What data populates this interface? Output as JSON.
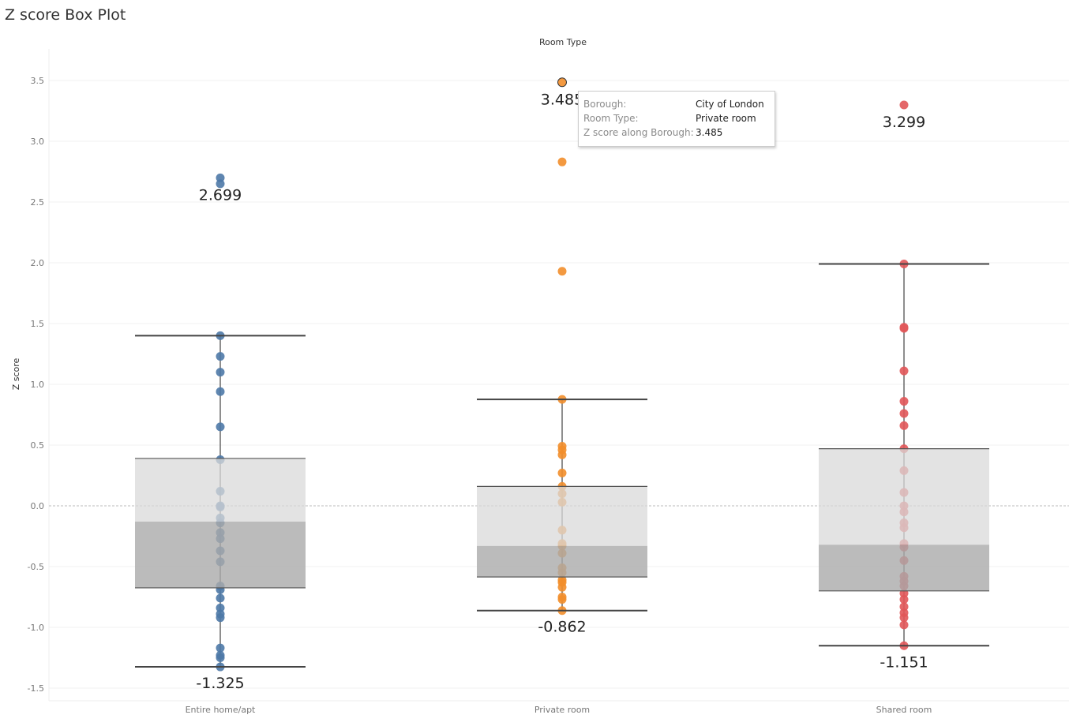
{
  "title": "Z score Box Plot",
  "chart_data": {
    "type": "box",
    "title": "Z score Box Plot",
    "column_header": "Room Type",
    "ylabel": "Z score",
    "ylim": [
      -1.6,
      3.75
    ],
    "yticks": [
      3.5,
      3.0,
      2.5,
      2.0,
      1.5,
      1.0,
      0.5,
      0.0,
      -0.5,
      -1.0,
      -1.5
    ],
    "ytick_labels": [
      "3.5",
      "3.0",
      "2.5",
      "2.0",
      "1.5",
      "1.0",
      "0.5",
      "0.0",
      "-0.5",
      "-1.0",
      "-1.5"
    ],
    "categories": [
      "Entire home/apt",
      "Private room",
      "Shared room"
    ],
    "colors": [
      "#4e79a7",
      "#f28e2b",
      "#e15759"
    ],
    "series": [
      {
        "name": "Entire home/apt",
        "max_label": "2.699",
        "min_label": "-1.325",
        "box": {
          "lower_whisker": -1.325,
          "q1": -0.675,
          "median": -0.13,
          "q3": 0.39,
          "upper_whisker": 1.4
        },
        "points": [
          2.699,
          2.65,
          1.4,
          1.23,
          1.1,
          0.94,
          0.65,
          0.38,
          0.12,
          0.0,
          -0.01,
          -0.1,
          -0.14,
          -0.22,
          -0.27,
          -0.37,
          -0.46,
          -0.66,
          -0.69,
          -0.76,
          -0.84,
          -0.89,
          -0.92,
          -1.17,
          -1.23,
          -1.25,
          -1.325
        ]
      },
      {
        "name": "Private room",
        "max_label": "3.485",
        "min_label": "-0.862",
        "box": {
          "lower_whisker": -0.862,
          "q1": -0.585,
          "median": -0.33,
          "q3": 0.16,
          "upper_whisker": 0.876
        },
        "points": [
          3.485,
          2.83,
          1.93,
          0.876,
          0.49,
          0.46,
          0.42,
          0.27,
          0.16,
          0.1,
          0.03,
          -0.2,
          -0.31,
          -0.33,
          -0.39,
          -0.51,
          -0.55,
          -0.61,
          -0.63,
          -0.67,
          -0.75,
          -0.77,
          -0.862
        ]
      },
      {
        "name": "Shared room",
        "max_label": "3.299",
        "min_label": "-1.151",
        "box": {
          "lower_whisker": -1.151,
          "q1": -0.7,
          "median": -0.32,
          "q3": 0.47,
          "upper_whisker": 1.99
        },
        "points": [
          3.299,
          1.99,
          1.47,
          1.46,
          1.11,
          0.86,
          0.76,
          0.66,
          0.47,
          0.29,
          0.11,
          0.0,
          -0.05,
          -0.14,
          -0.18,
          -0.31,
          -0.34,
          -0.45,
          -0.58,
          -0.62,
          -0.66,
          -0.72,
          -0.77,
          -0.83,
          -0.88,
          -0.92,
          -0.98,
          -1.151
        ]
      }
    ],
    "highlighted_point": {
      "category": "Private room",
      "value": 3.485
    },
    "grid": true
  },
  "tooltip": {
    "rows": [
      {
        "key": "Borough:",
        "value": "City of London"
      },
      {
        "key": "Room Type:",
        "value": "Private room"
      },
      {
        "key": "Z score along Borough:",
        "value": "3.485"
      }
    ]
  }
}
